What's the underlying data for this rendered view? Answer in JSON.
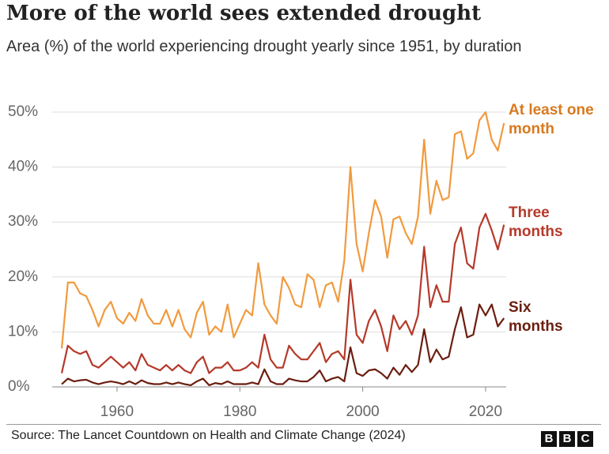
{
  "chart_data": {
    "type": "line",
    "title": "More of the world sees extended drought",
    "subtitle": "Area (%) of the world experiencing drought yearly since 1951, by duration",
    "x": [
      1951,
      1952,
      1953,
      1954,
      1955,
      1956,
      1957,
      1958,
      1959,
      1960,
      1961,
      1962,
      1963,
      1964,
      1965,
      1966,
      1967,
      1968,
      1969,
      1970,
      1971,
      1972,
      1973,
      1974,
      1975,
      1976,
      1977,
      1978,
      1979,
      1980,
      1981,
      1982,
      1983,
      1984,
      1985,
      1986,
      1987,
      1988,
      1989,
      1990,
      1991,
      1992,
      1993,
      1994,
      1995,
      1996,
      1997,
      1998,
      1999,
      2000,
      2001,
      2002,
      2003,
      2004,
      2005,
      2006,
      2007,
      2008,
      2009,
      2010,
      2011,
      2012,
      2013,
      2014,
      2015,
      2016,
      2017,
      2018,
      2019,
      2020,
      2021,
      2022,
      2023
    ],
    "series": [
      {
        "name": "At least one month",
        "color": "#f19a3e",
        "label_color": "#d9791e",
        "values": [
          7,
          19,
          19,
          17,
          16.5,
          14,
          11,
          14,
          15.5,
          12.5,
          11.5,
          13.5,
          12,
          16,
          13,
          11.5,
          11.5,
          14,
          11,
          14,
          10.5,
          9,
          13.5,
          15.5,
          9.5,
          11,
          10,
          15,
          9,
          11.5,
          14,
          13,
          22.5,
          15,
          13,
          11.5,
          20,
          18,
          15,
          14.5,
          20.5,
          19.5,
          14.5,
          18.5,
          19,
          15.5,
          23,
          40,
          26,
          21,
          28,
          34,
          31,
          23.5,
          30.5,
          31,
          28,
          26,
          31,
          45,
          31.5,
          37.5,
          34,
          34.5,
          46,
          46.5,
          41.5,
          42.5,
          48.5,
          50,
          45,
          43,
          48
        ]
      },
      {
        "name": "Three months",
        "color": "#b5392a",
        "label_color": "#b5392a",
        "values": [
          2.5,
          7.5,
          6.5,
          6,
          6.5,
          4,
          3.5,
          4.5,
          5.5,
          4.5,
          3.5,
          4.5,
          3,
          6,
          4,
          3.5,
          3,
          4,
          3,
          4,
          3,
          2.5,
          4.5,
          5.5,
          2.5,
          3.5,
          3.5,
          4.5,
          3,
          3,
          3.5,
          4.5,
          3.5,
          9.5,
          5,
          3.5,
          3.5,
          7.5,
          6,
          5,
          5,
          6.5,
          8,
          4.5,
          6,
          6.5,
          5,
          19.5,
          9.5,
          8,
          12,
          14,
          11,
          6.5,
          13,
          10.5,
          12,
          9.5,
          13,
          25.5,
          14.5,
          18.5,
          15.5,
          15.5,
          26,
          29,
          22.5,
          21.5,
          29,
          31.5,
          28.5,
          25,
          29.5
        ]
      },
      {
        "name": "Six months",
        "color": "#6b1e10",
        "label_color": "#6b1e10",
        "values": [
          0.5,
          1.5,
          1,
          1.2,
          1.3,
          0.8,
          0.5,
          0.8,
          1,
          0.8,
          0.5,
          1,
          0.5,
          1.2,
          0.7,
          0.5,
          0.5,
          0.8,
          0.5,
          0.8,
          0.5,
          0.3,
          1,
          1.5,
          0.3,
          0.7,
          0.5,
          1,
          0.5,
          0.5,
          0.5,
          0.8,
          0.5,
          3.2,
          1,
          0.5,
          0.5,
          1.5,
          1.2,
          1,
          1,
          1.8,
          3,
          1,
          1.5,
          1.8,
          1,
          7.2,
          2.5,
          2,
          3,
          3.2,
          2.5,
          1.5,
          3.5,
          2.2,
          4,
          2.7,
          4,
          10.5,
          4.5,
          6.8,
          5,
          5.5,
          10.5,
          14.5,
          9,
          9.5,
          15,
          13,
          15,
          11,
          12.5
        ]
      }
    ],
    "xlim": [
      1949.5,
      2024
    ],
    "xticks": [
      1960,
      1980,
      2000,
      2020
    ],
    "ylim": [
      0,
      50
    ],
    "yticks": [
      {
        "value": 0,
        "label": "0%"
      },
      {
        "value": 10,
        "label": "10%"
      },
      {
        "value": 20,
        "label": "20%"
      },
      {
        "value": 30,
        "label": "30%"
      },
      {
        "value": 40,
        "label": "40%"
      },
      {
        "value": 50,
        "label": "50%"
      }
    ],
    "grid": true,
    "source": "Source: The Lancet Countdown on Health and Climate Change (2024)",
    "logo": [
      "B",
      "B",
      "C"
    ]
  }
}
